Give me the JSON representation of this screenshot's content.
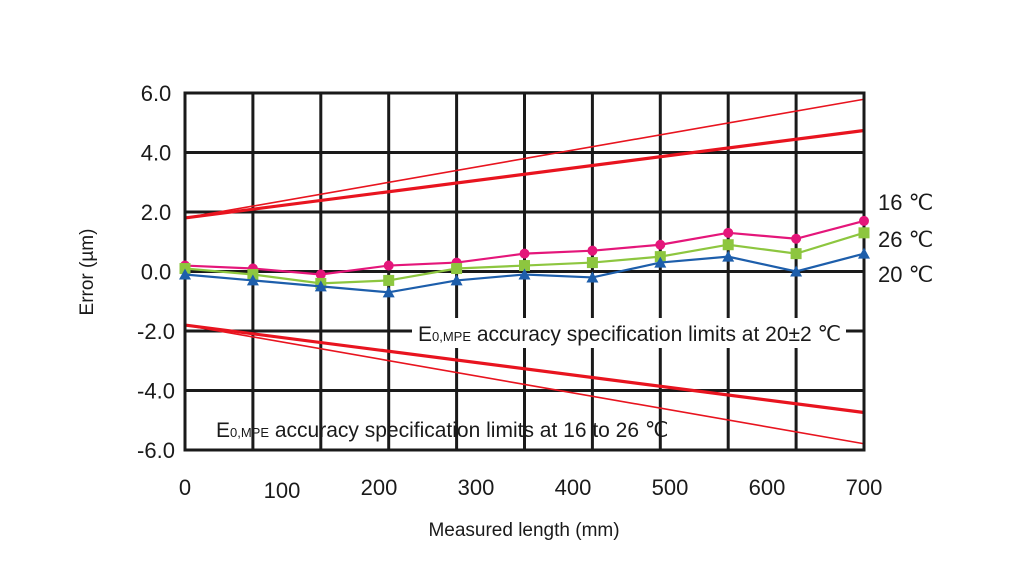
{
  "chart_data": {
    "type": "line",
    "xlabel": "Measured length (mm)",
    "ylabel": "Error (µm)",
    "xlim": [
      0,
      700
    ],
    "ylim": [
      -6,
      6
    ],
    "grid": true,
    "x_ticks": [
      "0",
      "100",
      "200",
      "300",
      "400",
      "500",
      "600",
      "700"
    ],
    "y_ticks": [
      "6.0",
      "4.0",
      "2.0",
      "0.0",
      "-2.0",
      "-4.0",
      "-6.0"
    ],
    "x": [
      0,
      70,
      140,
      210,
      280,
      350,
      420,
      490,
      560,
      630,
      700
    ],
    "series": [
      {
        "name": "16 ℃",
        "color": "#e4167a",
        "marker": "circle",
        "values": [
          0.2,
          0.1,
          -0.1,
          0.2,
          0.3,
          0.6,
          0.7,
          0.9,
          1.3,
          1.1,
          1.7
        ]
      },
      {
        "name": "26 ℃",
        "color": "#8dc63f",
        "marker": "square",
        "values": [
          0.1,
          -0.1,
          -0.4,
          -0.3,
          0.1,
          0.2,
          0.3,
          0.5,
          0.9,
          0.6,
          1.3
        ]
      },
      {
        "name": "20 ℃",
        "color": "#1d5eab",
        "marker": "triangle",
        "values": [
          -0.1,
          -0.3,
          -0.5,
          -0.7,
          -0.3,
          -0.1,
          -0.2,
          0.3,
          0.5,
          0.0,
          0.6
        ]
      }
    ],
    "limit_lines": [
      {
        "label_main": "E",
        "label_sub": "0,MPE",
        "label_rest": " accuracy specification limits at 20±2 ℃",
        "color": "#e8141f",
        "weight": "thick",
        "intercept": 1.8,
        "slope_per_mm": 0.0042
      },
      {
        "label_main": "E",
        "label_sub": "0,MPE",
        "label_rest": " accuracy specification limits at 16 to 26 ℃",
        "color": "#e8141f",
        "weight": "thin",
        "intercept": 1.8,
        "slope_per_mm": 0.0057
      }
    ]
  }
}
